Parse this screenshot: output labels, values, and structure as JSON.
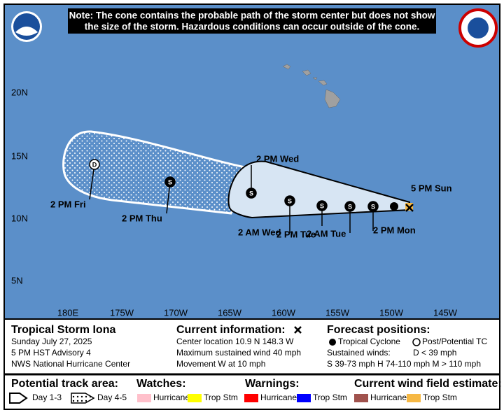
{
  "header": {
    "note_line1": "Note: The cone contains the probable path of the storm center but does not show",
    "note_line2": "the size of the storm. Hazardous conditions can occur outside of the cone."
  },
  "map": {
    "lat_labels": [
      "20N",
      "15N",
      "10N",
      "5N"
    ],
    "lon_labels": [
      "180E",
      "175W",
      "170W",
      "165W",
      "160W",
      "155W",
      "150W",
      "145W"
    ],
    "forecast_labels": [
      "5 PM Sun",
      "2 PM Mon",
      "2 AM Tue",
      "2 PM Tue",
      "2 AM Wed",
      "2 PM Wed",
      "2 PM Thu",
      "2 PM Fri"
    ],
    "point_markers": [
      "S",
      "S",
      "S",
      "S",
      "S",
      "S",
      "D"
    ]
  },
  "info": {
    "storm": "Tropical Storm Iona",
    "date": "Sunday July 27, 2025",
    "advisory": "5 PM HST Advisory 4",
    "center": "NWS National Hurricane Center"
  },
  "current": {
    "title": "Current information:",
    "location": "Center location 10.9 N 148.3 W",
    "wind": "Maximum sustained wind 40 mph",
    "movement": "Movement W at 10 mph"
  },
  "forecast": {
    "title": "Forecast positions:",
    "tc": "Tropical Cyclone",
    "post": "Post/Potential TC",
    "sustained": "Sustained winds:",
    "d": "D < 39 mph",
    "scale": "S 39-73 mph  H 74-110 mph  M > 110 mph"
  },
  "legend": {
    "track_title": "Potential track area:",
    "day13": "Day 1-3",
    "day45": "Day 4-5",
    "watches_title": "Watches:",
    "watch_hurricane": "Hurricane",
    "watch_ts": "Trop Stm",
    "warnings_title": "Warnings:",
    "warn_hurricane": "Hurricane",
    "warn_ts": "Trop Stm",
    "wind_title": "Current wind field estimate:",
    "wind_hurricane": "Hurricane",
    "wind_ts": "Trop Stm"
  }
}
